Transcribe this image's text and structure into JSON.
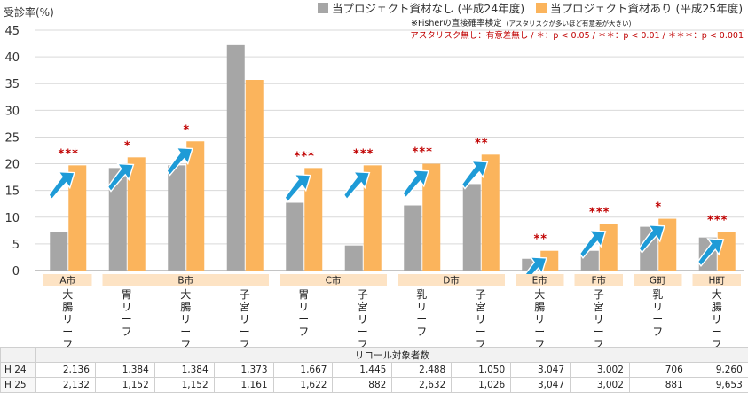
{
  "chart_data": {
    "type": "bar",
    "ylabel": "受診率(%)",
    "ylim": [
      0,
      45
    ],
    "yticks": [
      0,
      5,
      10,
      15,
      20,
      25,
      30,
      35,
      40,
      45
    ],
    "grid": true,
    "legend_position": "top-right",
    "series": [
      {
        "name": "当プロジェクト資材なし (平成24年度)",
        "color": "#a6a6a6",
        "values": [
          7.2,
          19.2,
          19.7,
          42.2,
          12.7,
          4.7,
          12.2,
          16.2,
          2.2,
          3.7,
          8.2,
          6.2
        ]
      },
      {
        "name": "当プロジェクト資材あり (平成25年度)",
        "color": "#fbb45c",
        "values": [
          19.7,
          21.2,
          24.2,
          35.7,
          19.2,
          19.7,
          20.0,
          21.7,
          3.7,
          8.7,
          9.7,
          7.2
        ]
      }
    ],
    "categories": [
      "大腸リーフ",
      "胃リーフ",
      "大腸リーフ",
      "子宮リーフ",
      "胃リーフ",
      "子宮リーフ",
      "乳リーフ",
      "子宮リーフ",
      "大腸リーフ",
      "子宮リーフ",
      "乳リーフ",
      "大腸リーフ"
    ],
    "groups": [
      {
        "label": "A市",
        "start": 0,
        "end": 0
      },
      {
        "label": "B市",
        "start": 1,
        "end": 3
      },
      {
        "label": "C市",
        "start": 4,
        "end": 5
      },
      {
        "label": "D市",
        "start": 6,
        "end": 7
      },
      {
        "label": "E市",
        "start": 8,
        "end": 8
      },
      {
        "label": "F市",
        "start": 9,
        "end": 9
      },
      {
        "label": "G町",
        "start": 10,
        "end": 10
      },
      {
        "label": "H町",
        "start": 11,
        "end": 11
      }
    ],
    "significance": [
      "***",
      "*",
      "*",
      "",
      "***",
      "***",
      "***",
      "**",
      "**",
      "***",
      "*",
      "***"
    ],
    "increase_arrow": [
      true,
      true,
      true,
      false,
      true,
      true,
      true,
      true,
      true,
      true,
      true,
      true
    ],
    "annotation_title": "※Fisherの直接確率検定",
    "annotation_note": "(アスタリスクが多いほど有意差が大きい)",
    "annotation_key": "アスタリスク無し：有意差無し / ＊：p < 0.05 / ＊＊：p < 0.01 / ＊＊＊：p < 0.001",
    "significance_color": "#c00000",
    "arrow_color": "#1e9bd7",
    "group_label_bg": "#fde3c4"
  },
  "table": {
    "header": "リコール対象者数",
    "rows": [
      {
        "label": "H 24",
        "values": [
          "2,136",
          "1,384",
          "1,384",
          "1,373",
          "1,667",
          "1,445",
          "2,488",
          "1,050",
          "3,047",
          "3,002",
          "706",
          "9,260"
        ]
      },
      {
        "label": "H 25",
        "values": [
          "2,132",
          "1,152",
          "1,152",
          "1,161",
          "1,622",
          "882",
          "2,632",
          "1,026",
          "3,047",
          "3,002",
          "881",
          "9,653"
        ]
      }
    ]
  }
}
